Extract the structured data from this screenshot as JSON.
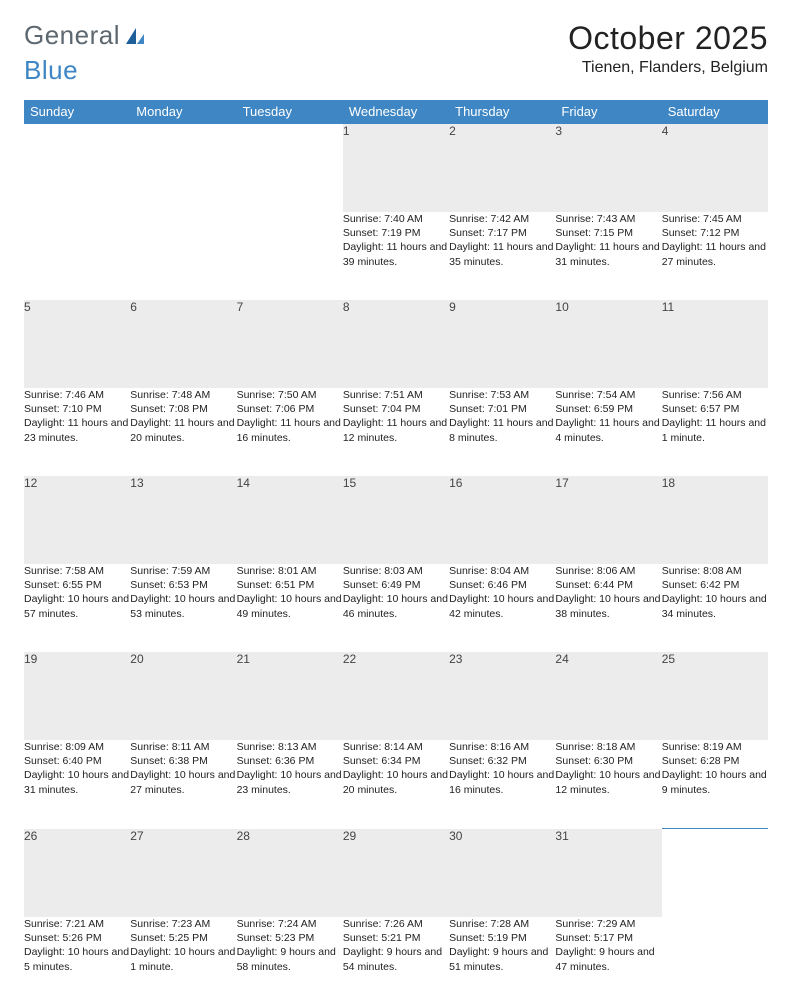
{
  "brand": {
    "part1": "General",
    "part2": "Blue"
  },
  "title": {
    "month": "October 2025",
    "location": "Tienen, Flanders, Belgium"
  },
  "colors": {
    "header_bg": "#3e86c4",
    "header_text": "#ffffff",
    "daynum_bg": "#ececec",
    "rule": "#3e86c4",
    "text": "#222222",
    "logo_gray": "#5d6770",
    "logo_blue": "#3e86c4"
  },
  "weekdays": [
    "Sunday",
    "Monday",
    "Tuesday",
    "Wednesday",
    "Thursday",
    "Friday",
    "Saturday"
  ],
  "weeks": [
    {
      "nums": [
        "",
        "",
        "",
        "1",
        "2",
        "3",
        "4"
      ],
      "cells": [
        null,
        null,
        null,
        {
          "sr": "7:40 AM",
          "ss": "7:19 PM",
          "dl": "11 hours and 39 minutes."
        },
        {
          "sr": "7:42 AM",
          "ss": "7:17 PM",
          "dl": "11 hours and 35 minutes."
        },
        {
          "sr": "7:43 AM",
          "ss": "7:15 PM",
          "dl": "11 hours and 31 minutes."
        },
        {
          "sr": "7:45 AM",
          "ss": "7:12 PM",
          "dl": "11 hours and 27 minutes."
        }
      ]
    },
    {
      "nums": [
        "5",
        "6",
        "7",
        "8",
        "9",
        "10",
        "11"
      ],
      "cells": [
        {
          "sr": "7:46 AM",
          "ss": "7:10 PM",
          "dl": "11 hours and 23 minutes."
        },
        {
          "sr": "7:48 AM",
          "ss": "7:08 PM",
          "dl": "11 hours and 20 minutes."
        },
        {
          "sr": "7:50 AM",
          "ss": "7:06 PM",
          "dl": "11 hours and 16 minutes."
        },
        {
          "sr": "7:51 AM",
          "ss": "7:04 PM",
          "dl": "11 hours and 12 minutes."
        },
        {
          "sr": "7:53 AM",
          "ss": "7:01 PM",
          "dl": "11 hours and 8 minutes."
        },
        {
          "sr": "7:54 AM",
          "ss": "6:59 PM",
          "dl": "11 hours and 4 minutes."
        },
        {
          "sr": "7:56 AM",
          "ss": "6:57 PM",
          "dl": "11 hours and 1 minute."
        }
      ]
    },
    {
      "nums": [
        "12",
        "13",
        "14",
        "15",
        "16",
        "17",
        "18"
      ],
      "cells": [
        {
          "sr": "7:58 AM",
          "ss": "6:55 PM",
          "dl": "10 hours and 57 minutes."
        },
        {
          "sr": "7:59 AM",
          "ss": "6:53 PM",
          "dl": "10 hours and 53 minutes."
        },
        {
          "sr": "8:01 AM",
          "ss": "6:51 PM",
          "dl": "10 hours and 49 minutes."
        },
        {
          "sr": "8:03 AM",
          "ss": "6:49 PM",
          "dl": "10 hours and 46 minutes."
        },
        {
          "sr": "8:04 AM",
          "ss": "6:46 PM",
          "dl": "10 hours and 42 minutes."
        },
        {
          "sr": "8:06 AM",
          "ss": "6:44 PM",
          "dl": "10 hours and 38 minutes."
        },
        {
          "sr": "8:08 AM",
          "ss": "6:42 PM",
          "dl": "10 hours and 34 minutes."
        }
      ]
    },
    {
      "nums": [
        "19",
        "20",
        "21",
        "22",
        "23",
        "24",
        "25"
      ],
      "cells": [
        {
          "sr": "8:09 AM",
          "ss": "6:40 PM",
          "dl": "10 hours and 31 minutes."
        },
        {
          "sr": "8:11 AM",
          "ss": "6:38 PM",
          "dl": "10 hours and 27 minutes."
        },
        {
          "sr": "8:13 AM",
          "ss": "6:36 PM",
          "dl": "10 hours and 23 minutes."
        },
        {
          "sr": "8:14 AM",
          "ss": "6:34 PM",
          "dl": "10 hours and 20 minutes."
        },
        {
          "sr": "8:16 AM",
          "ss": "6:32 PM",
          "dl": "10 hours and 16 minutes."
        },
        {
          "sr": "8:18 AM",
          "ss": "6:30 PM",
          "dl": "10 hours and 12 minutes."
        },
        {
          "sr": "8:19 AM",
          "ss": "6:28 PM",
          "dl": "10 hours and 9 minutes."
        }
      ]
    },
    {
      "nums": [
        "26",
        "27",
        "28",
        "29",
        "30",
        "31",
        ""
      ],
      "cells": [
        {
          "sr": "7:21 AM",
          "ss": "5:26 PM",
          "dl": "10 hours and 5 minutes."
        },
        {
          "sr": "7:23 AM",
          "ss": "5:25 PM",
          "dl": "10 hours and 1 minute."
        },
        {
          "sr": "7:24 AM",
          "ss": "5:23 PM",
          "dl": "9 hours and 58 minutes."
        },
        {
          "sr": "7:26 AM",
          "ss": "5:21 PM",
          "dl": "9 hours and 54 minutes."
        },
        {
          "sr": "7:28 AM",
          "ss": "5:19 PM",
          "dl": "9 hours and 51 minutes."
        },
        {
          "sr": "7:29 AM",
          "ss": "5:17 PM",
          "dl": "9 hours and 47 minutes."
        },
        null
      ]
    }
  ],
  "labels": {
    "sunrise": "Sunrise: ",
    "sunset": "Sunset: ",
    "daylight": "Daylight: "
  }
}
